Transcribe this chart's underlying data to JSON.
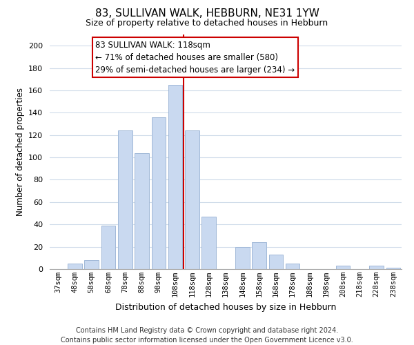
{
  "title": "83, SULLIVAN WALK, HEBBURN, NE31 1YW",
  "subtitle": "Size of property relative to detached houses in Hebburn",
  "xlabel": "Distribution of detached houses by size in Hebburn",
  "ylabel": "Number of detached properties",
  "bar_labels": [
    "37sqm",
    "48sqm",
    "58sqm",
    "68sqm",
    "78sqm",
    "88sqm",
    "98sqm",
    "108sqm",
    "118sqm",
    "128sqm",
    "138sqm",
    "148sqm",
    "158sqm",
    "168sqm",
    "178sqm",
    "188sqm",
    "198sqm",
    "208sqm",
    "218sqm",
    "228sqm",
    "238sqm"
  ],
  "bar_values": [
    0,
    5,
    8,
    39,
    124,
    104,
    136,
    165,
    124,
    47,
    0,
    20,
    24,
    13,
    5,
    0,
    0,
    3,
    0,
    3,
    1
  ],
  "bar_color": "#c9d9f0",
  "bar_edgecolor": "#a0b8d8",
  "vline_x": 8.5,
  "vline_color": "#cc0000",
  "annotation_box_text": "83 SULLIVAN WALK: 118sqm\n← 71% of detached houses are smaller (580)\n29% of semi-detached houses are larger (234) →",
  "ylim": [
    0,
    210
  ],
  "yticks": [
    0,
    20,
    40,
    60,
    80,
    100,
    120,
    140,
    160,
    180,
    200
  ],
  "footer_line1": "Contains HM Land Registry data © Crown copyright and database right 2024.",
  "footer_line2": "Contains public sector information licensed under the Open Government Licence v3.0.",
  "background_color": "#ffffff",
  "grid_color": "#d0dcea",
  "title_fontsize": 11,
  "subtitle_fontsize": 9,
  "annotation_fontsize": 8.5,
  "footer_fontsize": 7
}
